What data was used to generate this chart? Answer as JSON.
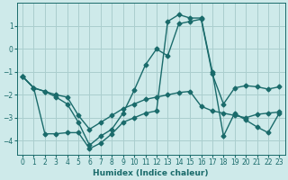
{
  "xlabel": "Humidex (Indice chaleur)",
  "bg_color": "#ceeaea",
  "grid_color": "#aacece",
  "line_color": "#1a6b6b",
  "xlim": [
    -0.5,
    23.5
  ],
  "ylim": [
    -4.6,
    2.0
  ],
  "yticks": [
    -4,
    -3,
    -2,
    -1,
    0,
    1
  ],
  "xticks": [
    0,
    1,
    2,
    3,
    4,
    5,
    6,
    7,
    8,
    9,
    10,
    11,
    12,
    13,
    14,
    15,
    16,
    17,
    18,
    19,
    20,
    21,
    22,
    23
  ],
  "line1_x": [
    0,
    1,
    2,
    3,
    4,
    5,
    6,
    7,
    8,
    9,
    10,
    11,
    12,
    13,
    14,
    15,
    16,
    17,
    18,
    19,
    20,
    21,
    22,
    23
  ],
  "line1_y": [
    -1.2,
    -1.7,
    -1.85,
    -2.0,
    -2.1,
    -2.9,
    -3.5,
    -3.2,
    -2.9,
    -2.6,
    -2.4,
    -2.2,
    -2.1,
    -2.0,
    -1.9,
    -1.85,
    -2.5,
    -2.7,
    -2.8,
    -2.9,
    -3.0,
    -2.85,
    -2.8,
    -2.75
  ],
  "line2_x": [
    0,
    1,
    2,
    3,
    4,
    5,
    6,
    7,
    8,
    9,
    10,
    11,
    12,
    13,
    14,
    15,
    16,
    17,
    18,
    19,
    20,
    21,
    22,
    23
  ],
  "line2_y": [
    -1.2,
    -1.7,
    -1.85,
    -2.1,
    -2.4,
    -3.2,
    -4.2,
    -3.8,
    -3.5,
    -2.8,
    -1.8,
    -0.7,
    0.0,
    -0.3,
    1.1,
    1.2,
    1.3,
    -1.1,
    -2.4,
    -1.7,
    -1.6,
    -1.65,
    -1.75,
    -1.65
  ],
  "line3_x": [
    0,
    1,
    2,
    3,
    4,
    5,
    6,
    7,
    8,
    9,
    10,
    11,
    12,
    13,
    14,
    15,
    16,
    17,
    18,
    19,
    20,
    21,
    22,
    23
  ],
  "line3_y": [
    -1.2,
    -1.7,
    -3.7,
    -3.7,
    -3.65,
    -3.65,
    -4.35,
    -4.1,
    -3.7,
    -3.2,
    -3.0,
    -2.8,
    -2.7,
    1.2,
    1.5,
    1.35,
    1.35,
    -1.0,
    -3.8,
    -2.8,
    -3.1,
    -3.4,
    -3.65,
    -2.8
  ],
  "marker": "D",
  "markersize": 2.5,
  "linewidth": 1.0
}
